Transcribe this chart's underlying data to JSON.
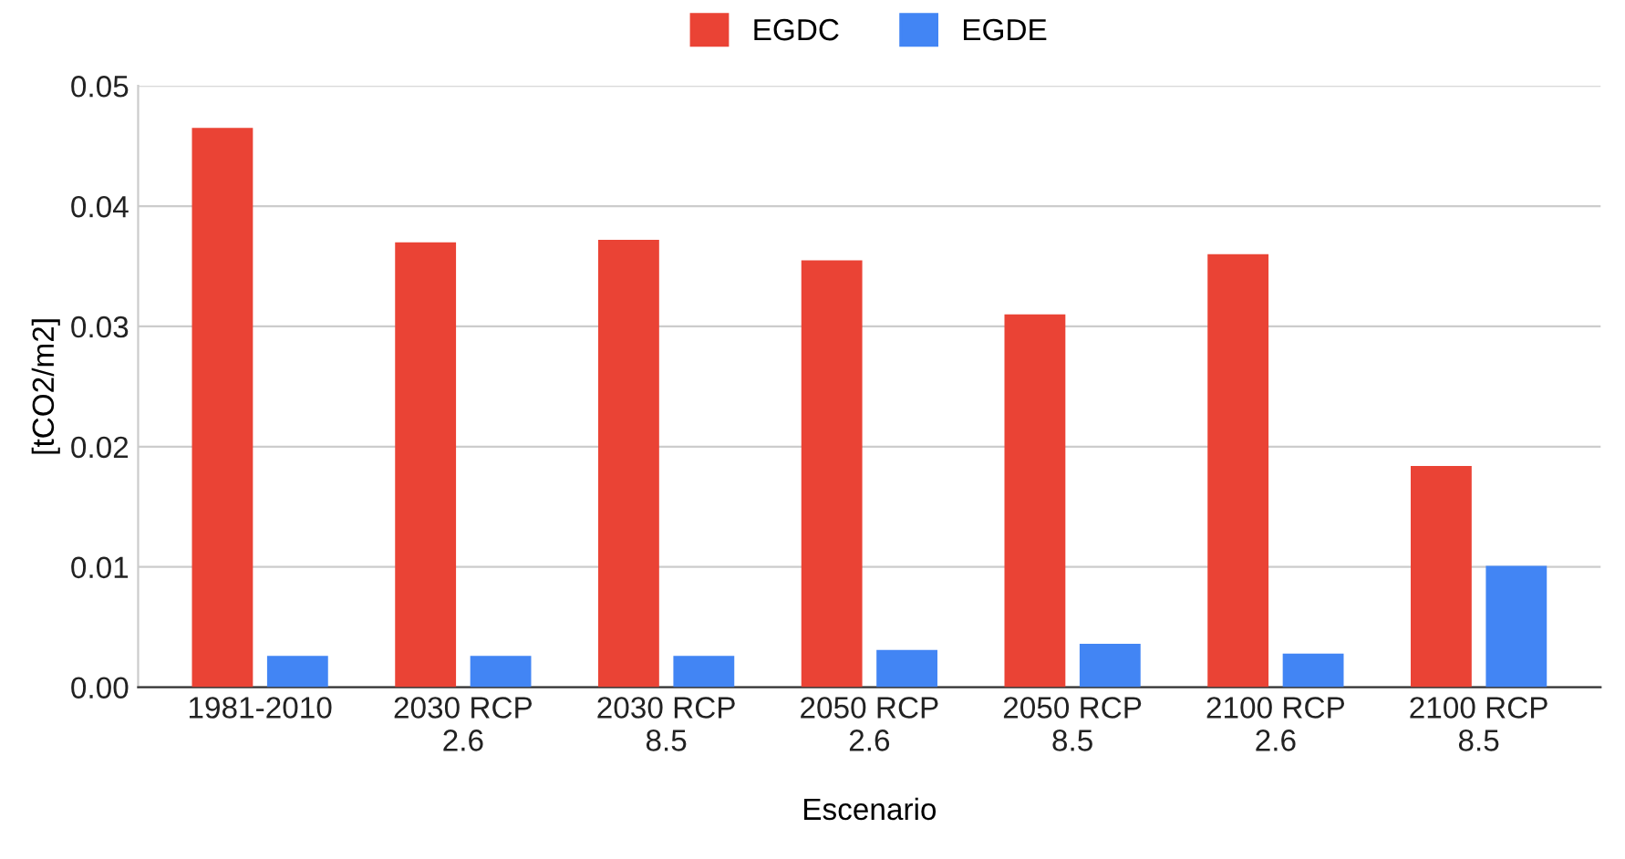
{
  "chart_data": {
    "type": "bar",
    "xlabel": "Escenario",
    "ylabel": "[tCO2/m2]",
    "categories": [
      "1981-2010",
      "2030 RCP\n2.6",
      "2030 RCP\n8.5",
      "2050 RCP\n2.6",
      "2050 RCP\n8.5",
      "2100 RCP\n2.6",
      "2100 RCP\n8.5"
    ],
    "series": [
      {
        "name": "EGDC",
        "color": "#ea4335",
        "values": [
          0.0465,
          0.037,
          0.0372,
          0.0355,
          0.031,
          0.036,
          0.0184
        ]
      },
      {
        "name": "EGDE",
        "color": "#4285f4",
        "values": [
          0.0026,
          0.0026,
          0.0026,
          0.0031,
          0.0036,
          0.0028,
          0.0101
        ]
      }
    ],
    "ylim": [
      0,
      0.05
    ],
    "yticks": [
      {
        "value": 0,
        "label": "0.00"
      },
      {
        "value": 0.01,
        "label": "0.01"
      },
      {
        "value": 0.02,
        "label": "0.02"
      },
      {
        "value": 0.03,
        "label": "0.03"
      },
      {
        "value": 0.04,
        "label": "0.04"
      },
      {
        "value": 0.05,
        "label": "0.05"
      }
    ],
    "grid": "y",
    "legend": "top"
  }
}
